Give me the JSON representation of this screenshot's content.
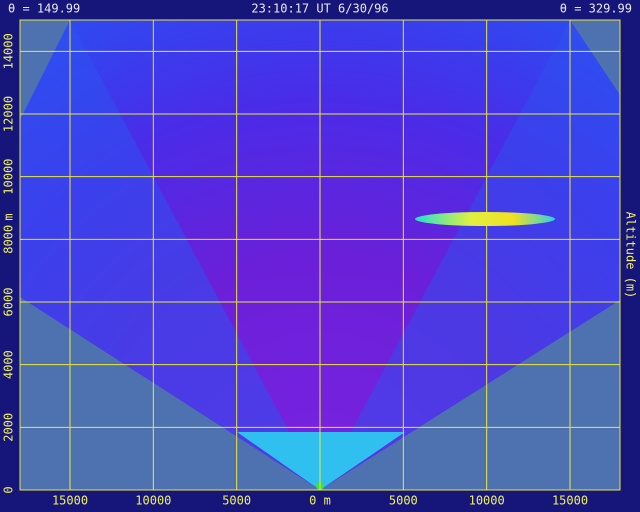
{
  "chart_data": {
    "type": "scan",
    "left_title": "θ = 149.99",
    "center_title": "23:10:17 UT  6/30/96",
    "right_title": "θ = 329.99",
    "y_unit": "m",
    "y2_label": "Altitude (m)",
    "xlim": [
      -18000,
      18000
    ],
    "ylim": [
      0,
      15000
    ],
    "xticks": [
      {
        "value": -15000,
        "label": "15000"
      },
      {
        "value": -10000,
        "label": "10000"
      },
      {
        "value": -5000,
        "label": "5000"
      },
      {
        "value": 0,
        "label": "0 m"
      },
      {
        "value": 5000,
        "label": "5000"
      },
      {
        "value": 10000,
        "label": "10000"
      },
      {
        "value": 15000,
        "label": "15000"
      }
    ],
    "yticks": [
      0,
      2000,
      4000,
      6000,
      8000,
      10000,
      12000,
      14000
    ],
    "grid": true,
    "grid_color": "#e8e840"
  }
}
